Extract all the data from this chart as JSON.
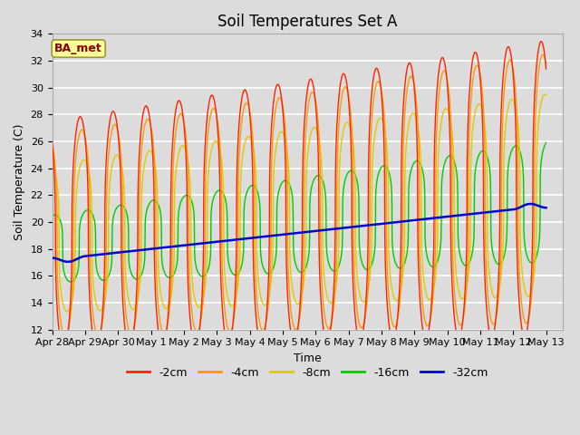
{
  "title": "Soil Temperatures Set A",
  "xlabel": "Time",
  "ylabel": "Soil Temperature (C)",
  "ylim": [
    12,
    34
  ],
  "xlim_days": 15.5,
  "background_color": "#dcdcdc",
  "plot_bg_color": "#dcdcdc",
  "grid_color": "#ffffff",
  "legend_labels": [
    "-2cm",
    "-4cm",
    "-8cm",
    "-16cm",
    "-32cm"
  ],
  "legend_colors": [
    "#ff2200",
    "#ff9900",
    "#ddcc00",
    "#00cc00",
    "#0000cc"
  ],
  "annotation_text": "BA_met",
  "annotation_bg": "#ffff99",
  "annotation_border": "#999933",
  "tick_dates": [
    "Apr 28",
    "Apr 29",
    "Apr 30",
    "May 1",
    "May 2",
    "May 3",
    "May 4",
    "May 5",
    "May 6",
    "May 7",
    "May 8",
    "May 9",
    "May 10",
    "May 11",
    "May 12",
    "May 13"
  ],
  "title_fontsize": 12,
  "axis_label_fontsize": 9,
  "tick_fontsize": 8
}
